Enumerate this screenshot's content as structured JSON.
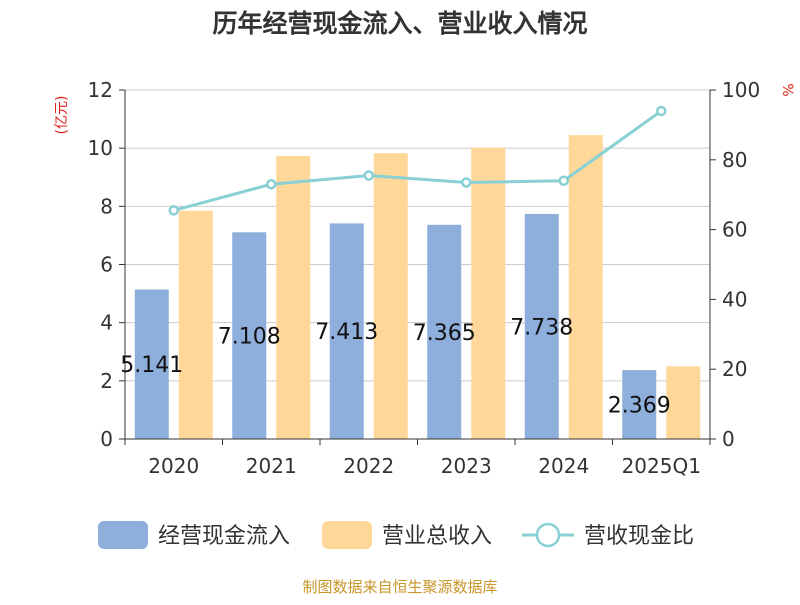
{
  "chart_data": {
    "type": "bar",
    "title": "历年经营现金流入、营业收入情况",
    "categories": [
      "2020",
      "2021",
      "2022",
      "2023",
      "2024",
      "2025Q1"
    ],
    "y_left": {
      "unit_label": "(亿元)",
      "range": [
        0,
        12
      ],
      "ticks": [
        "0",
        "2",
        "4",
        "6",
        "8",
        "10",
        "12"
      ]
    },
    "y_right": {
      "unit_label": "%",
      "range": [
        0,
        100
      ],
      "ticks": [
        "0",
        "20",
        "40",
        "60",
        "80",
        "100"
      ]
    },
    "grid": true,
    "legend_position": "bottom",
    "series": [
      {
        "name": "经营现金流入",
        "kind": "bar",
        "axis": "left",
        "color": "#8eaedb",
        "values": [
          5.141,
          7.108,
          7.413,
          7.365,
          7.738,
          2.369
        ],
        "data_labels": [
          "5.141",
          "7.108",
          "7.413",
          "7.365",
          "7.738",
          "2.369"
        ]
      },
      {
        "name": "营业总收入",
        "kind": "bar",
        "axis": "left",
        "color": "#ffd899",
        "values": [
          7.85,
          9.73,
          9.83,
          10.02,
          10.45,
          2.5
        ]
      },
      {
        "name": "营收现金比",
        "kind": "line",
        "axis": "right",
        "color": "#88d0d4",
        "values": [
          65.5,
          73.0,
          75.5,
          73.5,
          74.0,
          94.0
        ]
      }
    ]
  },
  "source": "制图数据来自恒生聚源数据库"
}
